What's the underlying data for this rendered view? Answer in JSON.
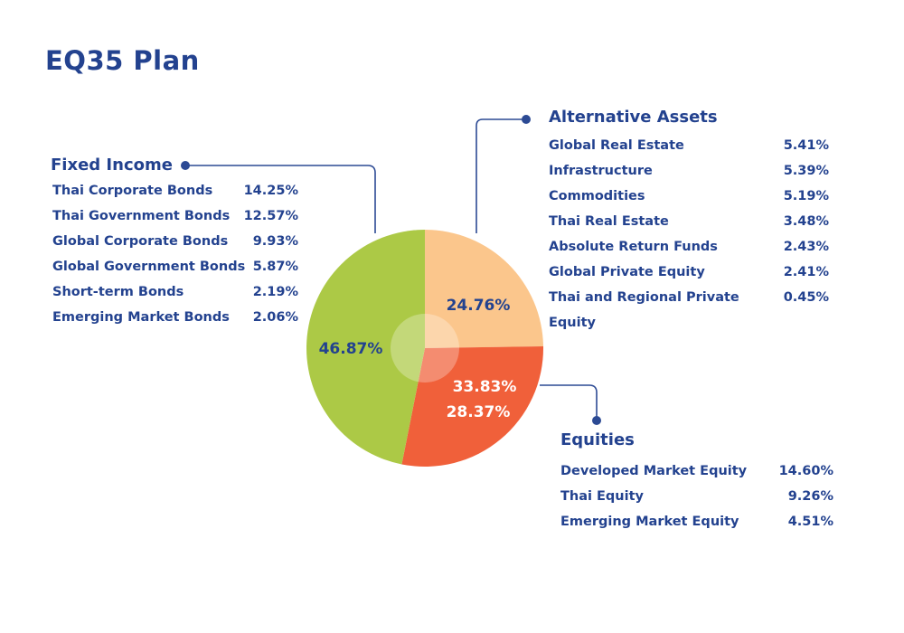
{
  "title": "EQ35 Plan",
  "colors": {
    "fixed_income": "#acc946",
    "alternative_assets": "#fbc68c",
    "equities": "#f0603a",
    "text": "#23428f",
    "pointer": "#2c4a94"
  },
  "chart_data": {
    "type": "pie",
    "slices": [
      {
        "key": "alternative_assets",
        "value": 24.76,
        "label": "24.76%",
        "color": "#fbc68c",
        "label_color": "#23428f"
      },
      {
        "key": "equities",
        "value": 28.37,
        "label": "28.37%",
        "color": "#f0603a",
        "label_color": "#ffffff"
      },
      {
        "key": "fixed_income",
        "value": 46.87,
        "label": "46.87%",
        "color": "#acc946",
        "label_color": "#23428f"
      }
    ],
    "extra_labels": [
      {
        "text": "33.83%",
        "color": "#ffffff"
      }
    ]
  },
  "groups": {
    "fixed_income": {
      "title": "Fixed Income",
      "items": [
        {
          "name": "Thai Corporate Bonds",
          "value": "14.25%"
        },
        {
          "name": "Thai Government Bonds",
          "value": "12.57%"
        },
        {
          "name": "Global Corporate Bonds",
          "value": "9.93%"
        },
        {
          "name": "Global Government Bonds",
          "value": "5.87%"
        },
        {
          "name": "Short-term Bonds",
          "value": "2.19%"
        },
        {
          "name": "Emerging Market Bonds",
          "value": "2.06%"
        }
      ]
    },
    "alternative_assets": {
      "title": "Alternative Assets",
      "items": [
        {
          "name": "Global Real Estate",
          "value": "5.41%"
        },
        {
          "name": "Infrastructure",
          "value": "5.39%"
        },
        {
          "name": "Commodities",
          "value": "5.19%"
        },
        {
          "name": "Thai Real Estate",
          "value": "3.48%"
        },
        {
          "name": "Absolute Return Funds",
          "value": "2.43%"
        },
        {
          "name": "Global Private Equity",
          "value": "2.41%"
        },
        {
          "name": "Thai and Regional Private Equity",
          "value": "0.45%"
        }
      ]
    },
    "equities": {
      "title": "Equities",
      "items": [
        {
          "name": "Developed Market Equity",
          "value": "14.60%"
        },
        {
          "name": "Thai Equity",
          "value": "9.26%"
        },
        {
          "name": "Emerging Market Equity",
          "value": "4.51%"
        }
      ]
    }
  }
}
